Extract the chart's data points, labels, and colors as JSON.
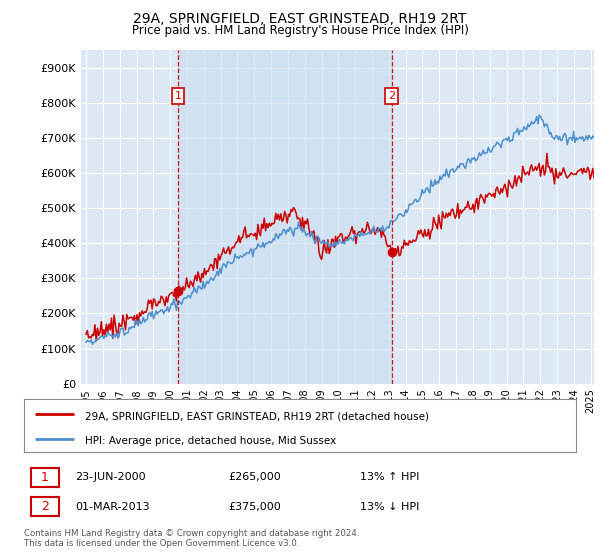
{
  "title": "29A, SPRINGFIELD, EAST GRINSTEAD, RH19 2RT",
  "subtitle": "Price paid vs. HM Land Registry's House Price Index (HPI)",
  "ylim": [
    0,
    950000
  ],
  "yticks": [
    0,
    100000,
    200000,
    300000,
    400000,
    500000,
    600000,
    700000,
    800000,
    900000
  ],
  "ytick_labels": [
    "£0",
    "£100K",
    "£200K",
    "£300K",
    "£400K",
    "£500K",
    "£600K",
    "£700K",
    "£800K",
    "£900K"
  ],
  "background_color": "#ffffff",
  "plot_bg_color": "#dce9f5",
  "grid_color": "#ffffff",
  "hpi_color": "#4d8fcc",
  "price_color": "#cc0000",
  "shade_color": "#dce9f5",
  "transaction1_date": "23-JUN-2000",
  "transaction1_price": 265000,
  "transaction1_hpi_pct": "13%",
  "transaction1_hpi_dir": "↑",
  "transaction2_date": "01-MAR-2013",
  "transaction2_price": 375000,
  "transaction2_hpi_pct": "13%",
  "transaction2_hpi_dir": "↓",
  "legend_label1": "29A, SPRINGFIELD, EAST GRINSTEAD, RH19 2RT (detached house)",
  "legend_label2": "HPI: Average price, detached house, Mid Sussex",
  "footnote": "Contains HM Land Registry data © Crown copyright and database right 2024.\nThis data is licensed under the Open Government Licence v3.0.",
  "vline1_x": 2000.48,
  "vline2_x": 2013.17,
  "marker1_x": 2000.48,
  "marker1_y": 265000,
  "marker2_x": 2013.17,
  "marker2_y": 375000,
  "xmin": 1995.0,
  "xmax": 2025.2
}
